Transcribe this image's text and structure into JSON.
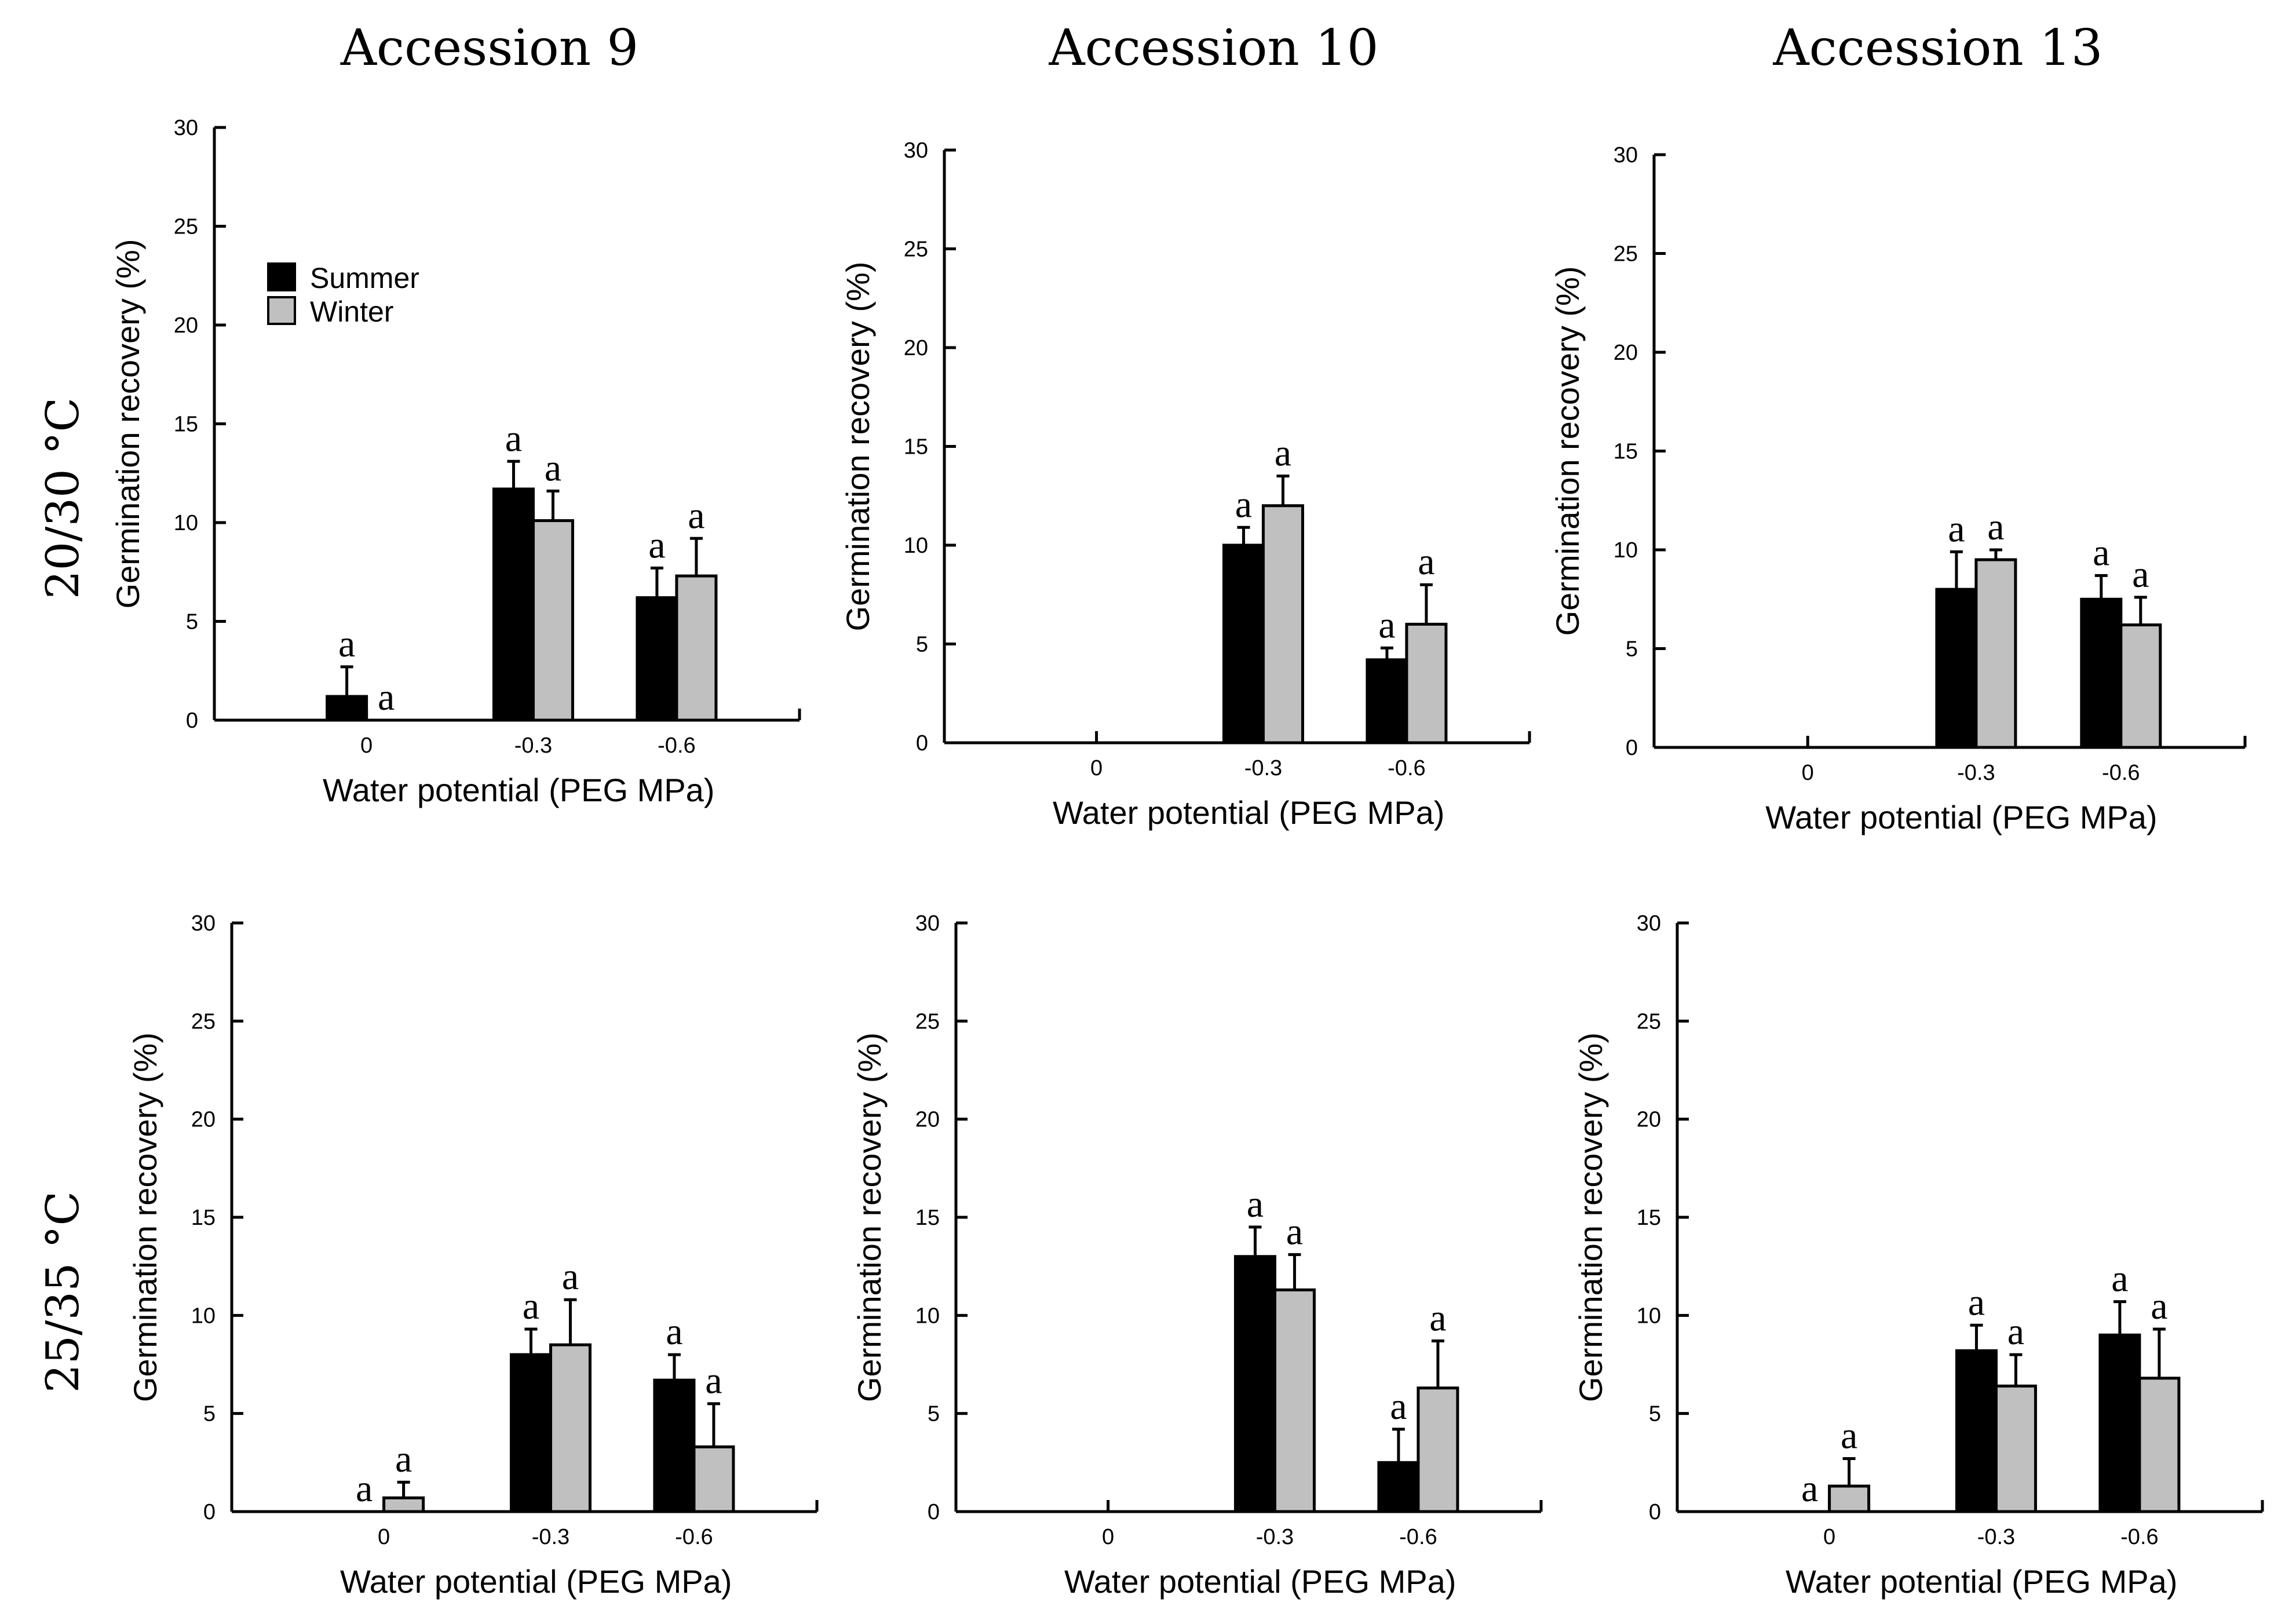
{
  "figure": {
    "column_titles": [
      "Accession 9",
      "Accession 10",
      "Accession 13"
    ],
    "row_labels": [
      "20/30 °C",
      "25/35 °C"
    ],
    "colors": {
      "summer": "#000000",
      "winter": "#c0c0c0",
      "axis": "#000000"
    }
  },
  "legend": {
    "placement": "top-left",
    "items": [
      {
        "name": "Summer",
        "color": "#000000"
      },
      {
        "name": "Winter",
        "color": "#c0c0c0"
      }
    ]
  },
  "chart_data": [
    {
      "type": "bar",
      "panel": "Accession 9, 20/30 °C",
      "categories": [
        "0",
        "-0.3",
        "-0.6"
      ],
      "xlabel": "Water potential (PEG MPa)",
      "ylabel": "Germination recovery (%)",
      "ylim": [
        0,
        30
      ],
      "yticks": [
        "0",
        "5",
        "10",
        "15",
        "20",
        "25",
        "30"
      ],
      "series": [
        {
          "name": "Summer",
          "values": [
            1.2,
            11.7,
            6.2
          ],
          "errors": [
            1.5,
            1.4,
            1.5
          ],
          "sig": [
            "a",
            "a",
            "a"
          ]
        },
        {
          "name": "Winter",
          "values": [
            0,
            10.1,
            7.3
          ],
          "errors": [
            0,
            1.5,
            1.9
          ],
          "sig": [
            "a",
            "a",
            "a"
          ]
        }
      ]
    },
    {
      "type": "bar",
      "panel": "Accession 10, 20/30 °C",
      "categories": [
        "0",
        "-0.3",
        "-0.6"
      ],
      "xlabel": "Water potential (PEG MPa)",
      "ylabel": "Germination recovery (%)",
      "ylim": [
        0,
        30
      ],
      "yticks": [
        "0",
        "5",
        "10",
        "15",
        "20",
        "25",
        "30"
      ],
      "series": [
        {
          "name": "Summer",
          "values": [
            0,
            10.0,
            4.2
          ],
          "errors": [
            0,
            0.9,
            0.6
          ],
          "sig": [
            "",
            "a",
            "a"
          ]
        },
        {
          "name": "Winter",
          "values": [
            0,
            12.0,
            6.0
          ],
          "errors": [
            0,
            1.5,
            2.0
          ],
          "sig": [
            "",
            "a",
            "a"
          ]
        }
      ]
    },
    {
      "type": "bar",
      "panel": "Accession 13, 20/30 °C",
      "categories": [
        "0",
        "-0.3",
        "-0.6"
      ],
      "xlabel": "Water potential (PEG MPa)",
      "ylabel": "Germination recovery (%)",
      "ylim": [
        0,
        30
      ],
      "yticks": [
        "0",
        "5",
        "10",
        "15",
        "20",
        "25",
        "30"
      ],
      "series": [
        {
          "name": "Summer",
          "values": [
            0,
            8.0,
            7.5
          ],
          "errors": [
            0,
            1.9,
            1.2
          ],
          "sig": [
            "",
            "a",
            "a"
          ]
        },
        {
          "name": "Winter",
          "values": [
            0,
            9.5,
            6.2
          ],
          "errors": [
            0,
            0.5,
            1.4
          ],
          "sig": [
            "",
            "a",
            "a"
          ]
        }
      ]
    },
    {
      "type": "bar",
      "panel": "Accession 9, 25/35 °C",
      "categories": [
        "0",
        "-0.3",
        "-0.6"
      ],
      "xlabel": "Water potential (PEG MPa)",
      "ylabel": "Germination recovery (%)",
      "ylim": [
        0,
        30
      ],
      "yticks": [
        "0",
        "5",
        "10",
        "15",
        "20",
        "25",
        "30"
      ],
      "series": [
        {
          "name": "Summer",
          "values": [
            0,
            8.0,
            6.7
          ],
          "errors": [
            0,
            1.3,
            1.3
          ],
          "sig": [
            "a",
            "a",
            "a"
          ]
        },
        {
          "name": "Winter",
          "values": [
            0.7,
            8.5,
            3.3
          ],
          "errors": [
            0.8,
            2.3,
            2.2
          ],
          "sig": [
            "a",
            "a",
            "a"
          ]
        }
      ]
    },
    {
      "type": "bar",
      "panel": "Accession 10, 25/35 °C",
      "categories": [
        "0",
        "-0.3",
        "-0.6"
      ],
      "xlabel": "Water potential (PEG MPa)",
      "ylabel": "Germination recovery (%)",
      "ylim": [
        0,
        30
      ],
      "yticks": [
        "0",
        "5",
        "10",
        "15",
        "20",
        "25",
        "30"
      ],
      "series": [
        {
          "name": "Summer",
          "values": [
            0,
            13.0,
            2.5
          ],
          "errors": [
            0,
            1.5,
            1.7
          ],
          "sig": [
            "",
            "a",
            "a"
          ]
        },
        {
          "name": "Winter",
          "values": [
            0,
            11.3,
            6.3
          ],
          "errors": [
            0,
            1.8,
            2.4
          ],
          "sig": [
            "",
            "a",
            "a"
          ]
        }
      ]
    },
    {
      "type": "bar",
      "panel": "Accession 13, 25/35 °C",
      "categories": [
        "0",
        "-0.3",
        "-0.6"
      ],
      "xlabel": "Water potential (PEG MPa)",
      "ylabel": "Germination recovery (%)",
      "ylim": [
        0,
        30
      ],
      "yticks": [
        "0",
        "5",
        "10",
        "15",
        "20",
        "25",
        "30"
      ],
      "series": [
        {
          "name": "Summer",
          "values": [
            0,
            8.2,
            9.0
          ],
          "errors": [
            0,
            1.3,
            1.7
          ],
          "sig": [
            "a",
            "a",
            "a"
          ]
        },
        {
          "name": "Winter",
          "values": [
            1.3,
            6.4,
            6.8
          ],
          "errors": [
            1.4,
            1.6,
            2.5
          ],
          "sig": [
            "a",
            "a",
            "a"
          ]
        }
      ]
    }
  ]
}
